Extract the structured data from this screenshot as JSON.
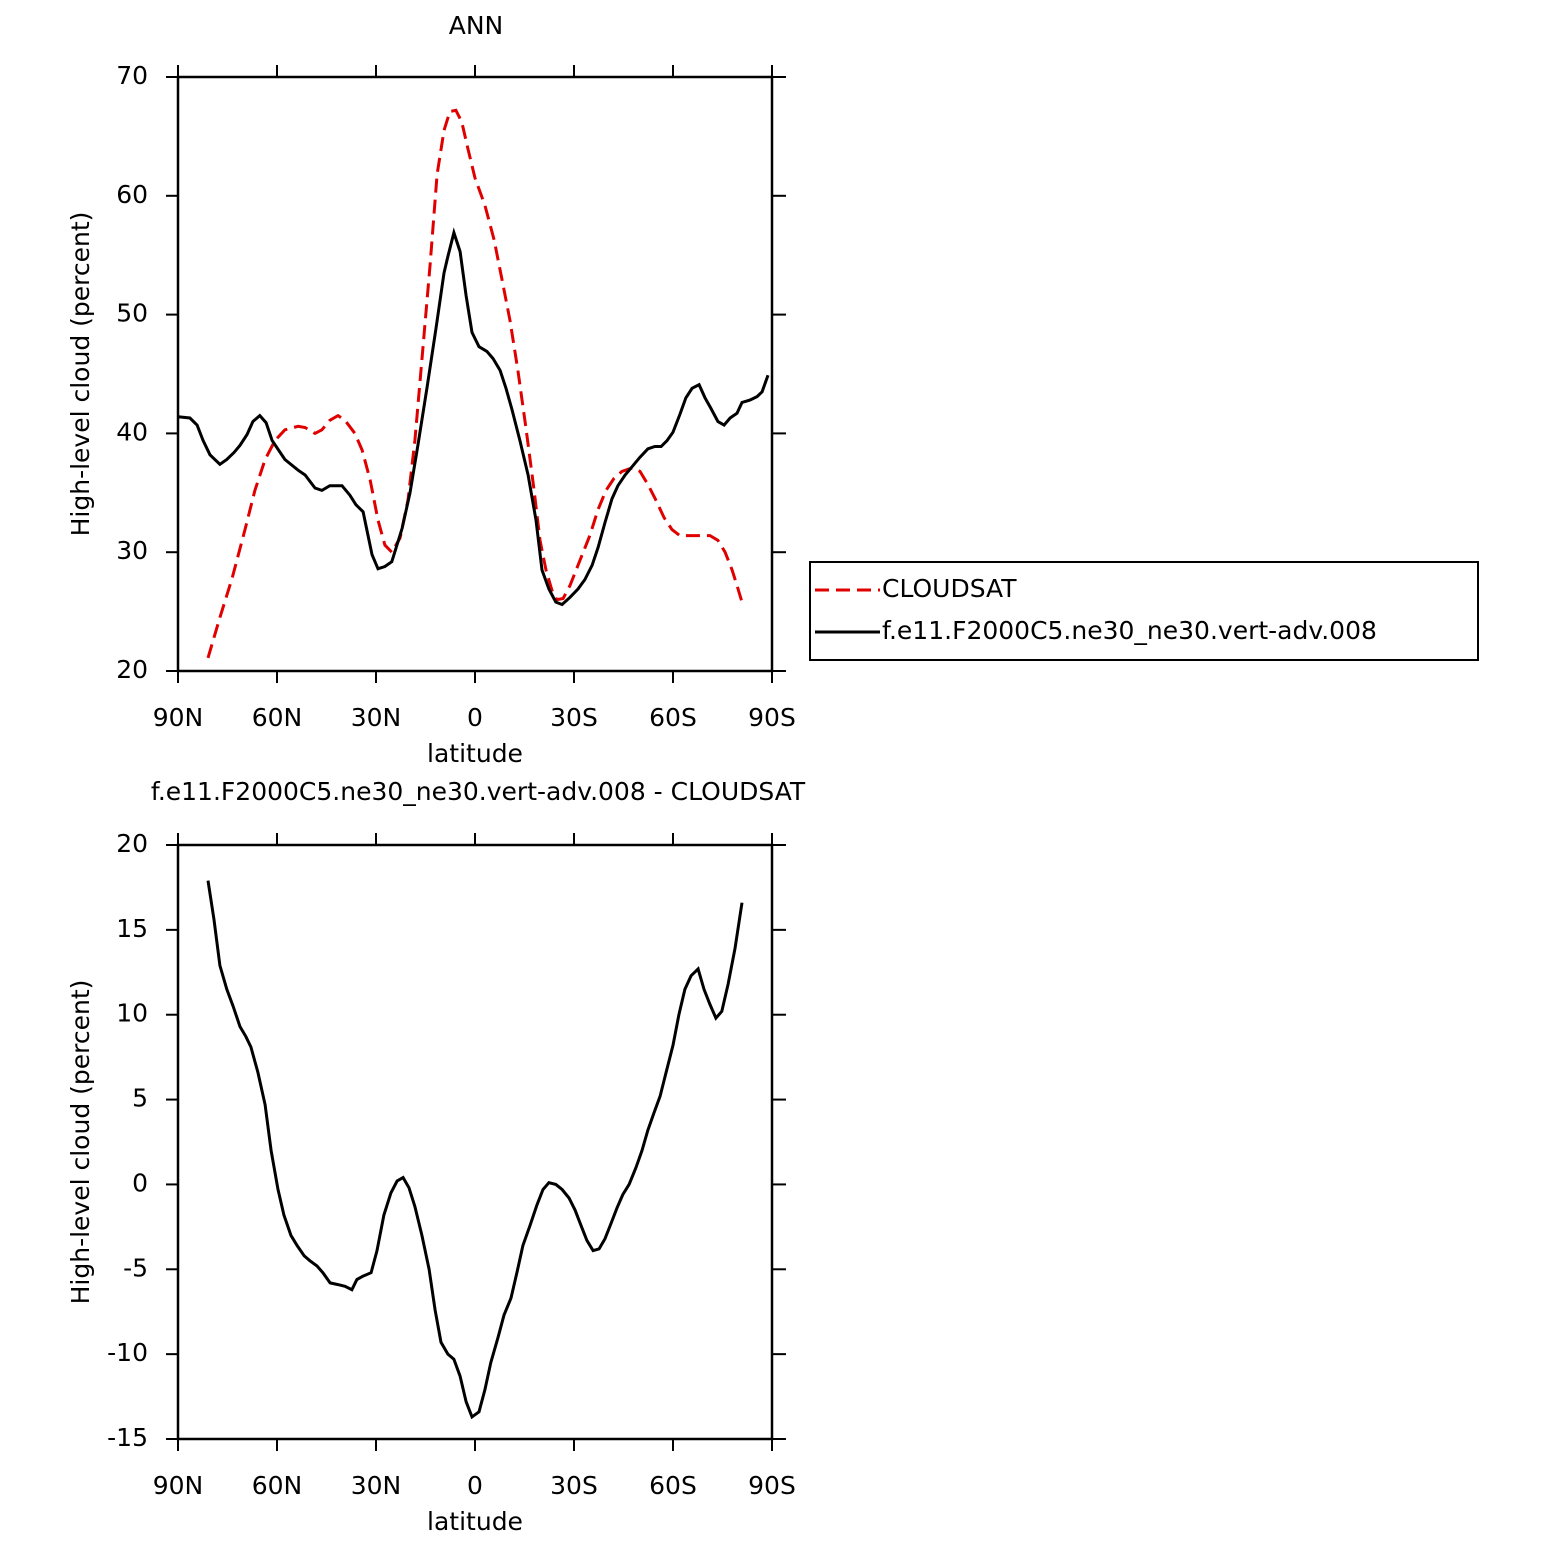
{
  "chart_data": [
    {
      "type": "line",
      "title": "ANN",
      "xlabel": "latitude",
      "ylabel": "High-level cloud (percent)",
      "xlim": [
        90,
        -90
      ],
      "xticks": [
        {
          "value": 90,
          "label": "90N"
        },
        {
          "value": 60,
          "label": "60N"
        },
        {
          "value": 30,
          "label": "30N"
        },
        0,
        {
          "value": -30,
          "label": "30S"
        },
        {
          "value": -60,
          "label": "60S"
        },
        {
          "value": -90,
          "label": "90S"
        }
      ],
      "ylim": [
        20,
        70
      ],
      "yticks": [
        20,
        30,
        40,
        50,
        60,
        70
      ],
      "legend": "right",
      "series": [
        {
          "name": "CLOUDSAT",
          "color": "#e00000",
          "dash": true,
          "x": [
            80.9,
            77.3,
            73.6,
            69.7,
            66.7,
            63.6,
            60.6,
            57.6,
            53.6,
            51.5,
            48.5,
            46.4,
            44.0,
            41.5,
            39.4,
            36.4,
            34.2,
            31.8,
            29.4,
            27.3,
            25.2,
            22.7,
            20.3,
            18.2,
            16.1,
            13.6,
            11.5,
            9.4,
            7.6,
            5.8,
            4.0,
            2.1,
            0.0,
            -3.0,
            -5.8,
            -8.2,
            -10.6,
            -13.0,
            -15.5,
            -17.9,
            -19.7,
            -21.5,
            -23.3,
            -24.8,
            -26.7,
            -28.8,
            -31.8,
            -34.8,
            -37.3,
            -39.7,
            -42.1,
            -44.5,
            -47.6,
            -50.0,
            -52.4,
            -54.8,
            -57.3,
            -59.7,
            -62.1,
            -65.2,
            -68.2,
            -71.2,
            -73.6,
            -75.8,
            -77.9,
            -79.4,
            -80.9
          ],
          "values": [
            21.1,
            24.5,
            27.8,
            31.9,
            35.2,
            37.8,
            39.4,
            40.3,
            40.6,
            40.5,
            40.0,
            40.3,
            41.1,
            41.5,
            41.1,
            40.0,
            38.6,
            36.1,
            32.7,
            30.6,
            30.0,
            31.2,
            34.4,
            39.4,
            46.2,
            54.2,
            61.8,
            65.5,
            67.1,
            67.2,
            66.2,
            63.9,
            61.5,
            59.2,
            56.3,
            52.9,
            49.5,
            45.3,
            40.3,
            35.2,
            31.0,
            28.5,
            26.8,
            26.0,
            26.1,
            27.2,
            29.3,
            31.4,
            33.6,
            35.2,
            36.2,
            36.8,
            37.1,
            36.8,
            35.7,
            34.4,
            32.9,
            31.9,
            31.4,
            31.4,
            31.4,
            31.4,
            31.0,
            30.0,
            28.5,
            27.2,
            25.8
          ]
        },
        {
          "name": "f.e11.F2000C5.ne30_ne30.vert-adv.008",
          "color": "#000000",
          "dash": false,
          "x": [
            90,
            86.4,
            84.2,
            82.4,
            80.3,
            77.3,
            75.2,
            73.0,
            71.2,
            69.1,
            67.3,
            65.2,
            63.3,
            61.5,
            57.6,
            53.6,
            51.5,
            48.5,
            46.4,
            44.0,
            40.3,
            37.9,
            36.1,
            33.9,
            31.2,
            29.4,
            27.3,
            25.2,
            22.1,
            19.7,
            17.3,
            14.5,
            11.8,
            9.4,
            8.2,
            6.4,
            4.5,
            2.7,
            0.9,
            -1.2,
            -3.6,
            -5.5,
            -7.6,
            -9.4,
            -11.2,
            -13.6,
            -16.1,
            -18.5,
            -20.3,
            -22.4,
            -24.5,
            -26.4,
            -28.8,
            -31.2,
            -33.3,
            -35.5,
            -37.3,
            -39.4,
            -41.5,
            -43.3,
            -45.5,
            -47.6,
            -50.0,
            -52.4,
            -54.5,
            -56.4,
            -58.2,
            -60.0,
            -62.1,
            -63.9,
            -65.8,
            -67.9,
            -69.7,
            -71.5,
            -73.6,
            -75.5,
            -77.3,
            -79.4,
            -80.9,
            -83.3,
            -85.5,
            -87.0,
            -88.8
          ],
          "values": [
            41.4,
            41.3,
            40.7,
            39.4,
            38.2,
            37.4,
            37.8,
            38.4,
            39.0,
            39.9,
            41.0,
            41.5,
            40.9,
            39.4,
            37.8,
            36.9,
            36.5,
            35.4,
            35.2,
            35.6,
            35.6,
            34.8,
            34.0,
            33.4,
            29.8,
            28.6,
            28.8,
            29.2,
            32.0,
            35.0,
            39.0,
            43.9,
            48.9,
            53.5,
            54.9,
            56.9,
            55.3,
            51.6,
            48.5,
            47.3,
            46.9,
            46.3,
            45.3,
            43.8,
            42.0,
            39.4,
            36.5,
            32.7,
            28.5,
            26.9,
            25.8,
            25.6,
            26.2,
            26.9,
            27.7,
            28.9,
            30.4,
            32.5,
            34.5,
            35.6,
            36.5,
            37.2,
            38.0,
            38.7,
            38.9,
            38.9,
            39.4,
            40.1,
            41.6,
            43.0,
            43.8,
            44.1,
            43.0,
            42.1,
            41.0,
            40.7,
            41.3,
            41.7,
            42.6,
            42.8,
            43.1,
            43.5,
            44.9
          ]
        }
      ]
    },
    {
      "type": "line",
      "title": "f.e11.F2000C5.ne30_ne30.vert-adv.008 - CLOUDSAT",
      "xlabel": "latitude",
      "ylabel": "High-level cloud (percent)",
      "xlim": [
        90,
        -90
      ],
      "xticks": [
        {
          "value": 90,
          "label": "90N"
        },
        {
          "value": 60,
          "label": "60N"
        },
        {
          "value": 30,
          "label": "30N"
        },
        0,
        {
          "value": -30,
          "label": "30S"
        },
        {
          "value": -60,
          "label": "60S"
        },
        {
          "value": -90,
          "label": "90S"
        }
      ],
      "ylim": [
        -15,
        20
      ],
      "yticks": [
        -15,
        -10,
        -5,
        0,
        5,
        10,
        15,
        20
      ],
      "series": [
        {
          "color": "#000000",
          "dash": false,
          "x": [
            80.9,
            79.1,
            77.3,
            75.2,
            73.3,
            71.2,
            69.4,
            67.9,
            65.8,
            63.6,
            61.8,
            59.7,
            57.9,
            55.8,
            53.9,
            51.8,
            50.0,
            47.9,
            46.1,
            43.9,
            41.5,
            39.4,
            37.3,
            35.8,
            33.9,
            31.5,
            29.7,
            27.6,
            25.5,
            23.6,
            21.8,
            20.0,
            18.2,
            16.1,
            13.9,
            12.1,
            10.3,
            8.2,
            6.4,
            4.5,
            2.7,
            0.9,
            -1.2,
            -3.0,
            -4.8,
            -7.0,
            -8.8,
            -10.9,
            -12.7,
            -14.5,
            -16.7,
            -18.8,
            -20.6,
            -22.4,
            -24.5,
            -26.4,
            -28.5,
            -30.3,
            -32.1,
            -33.9,
            -35.8,
            -37.6,
            -39.4,
            -41.2,
            -43.0,
            -44.8,
            -46.7,
            -48.8,
            -50.6,
            -52.4,
            -54.2,
            -56.1,
            -57.9,
            -60.0,
            -61.8,
            -63.6,
            -65.5,
            -67.6,
            -69.4,
            -71.2,
            -73.0,
            -74.8,
            -76.7,
            -78.8,
            -80.9
          ],
          "values": [
            17.9,
            15.6,
            12.9,
            11.5,
            10.5,
            9.3,
            8.7,
            8.1,
            6.6,
            4.7,
            2.0,
            -0.3,
            -1.8,
            -3.0,
            -3.6,
            -4.2,
            -4.5,
            -4.8,
            -5.2,
            -5.8,
            -5.9,
            -6.0,
            -6.2,
            -5.6,
            -5.4,
            -5.2,
            -3.9,
            -1.8,
            -0.5,
            0.2,
            0.4,
            -0.2,
            -1.3,
            -3.0,
            -5.0,
            -7.4,
            -9.3,
            -10.0,
            -10.3,
            -11.3,
            -12.8,
            -13.7,
            -13.4,
            -12.1,
            -10.5,
            -9.0,
            -7.7,
            -6.7,
            -5.2,
            -3.6,
            -2.4,
            -1.2,
            -0.3,
            0.1,
            0.0,
            -0.3,
            -0.8,
            -1.5,
            -2.4,
            -3.3,
            -3.9,
            -3.8,
            -3.2,
            -2.3,
            -1.4,
            -0.6,
            0.0,
            1.0,
            2.0,
            3.2,
            4.2,
            5.2,
            6.6,
            8.2,
            10.0,
            11.5,
            12.3,
            12.7,
            11.5,
            10.6,
            9.8,
            10.2,
            11.8,
            13.9,
            16.6
          ]
        }
      ]
    }
  ]
}
